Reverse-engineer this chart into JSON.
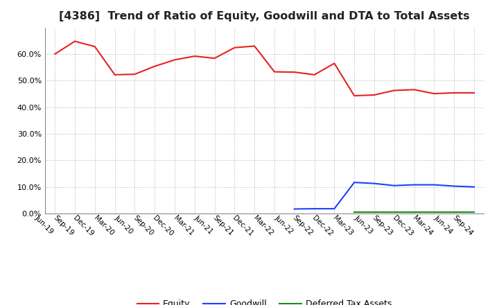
{
  "title": "[4386]  Trend of Ratio of Equity, Goodwill and DTA to Total Assets",
  "x_labels": [
    "Jun-19",
    "Sep-19",
    "Dec-19",
    "Mar-20",
    "Jun-20",
    "Sep-20",
    "Dec-20",
    "Mar-21",
    "Jun-21",
    "Sep-21",
    "Dec-21",
    "Mar-22",
    "Jun-22",
    "Sep-22",
    "Dec-22",
    "Mar-23",
    "Jun-23",
    "Sep-23",
    "Dec-23",
    "Mar-24",
    "Jun-24",
    "Sep-24"
  ],
  "equity": [
    0.6,
    0.648,
    0.628,
    0.522,
    0.524,
    0.554,
    0.578,
    0.592,
    0.584,
    0.624,
    0.63,
    0.533,
    0.532,
    0.522,
    0.565,
    0.443,
    0.446,
    0.463,
    0.466,
    0.451,
    0.454,
    0.454
  ],
  "goodwill": [
    null,
    null,
    null,
    null,
    null,
    null,
    null,
    null,
    null,
    null,
    null,
    null,
    0.017,
    0.018,
    0.018,
    0.117,
    0.113,
    0.105,
    0.108,
    0.108,
    0.103,
    0.1
  ],
  "dta": [
    null,
    null,
    null,
    null,
    null,
    null,
    null,
    null,
    null,
    null,
    null,
    null,
    null,
    null,
    null,
    0.005,
    0.005,
    0.005,
    0.005,
    0.005,
    0.005,
    0.005
  ],
  "equity_color": "#e82020",
  "goodwill_color": "#1e3eff",
  "dta_color": "#1a8a1a",
  "background_color": "#ffffff",
  "grid_color": "#b0b0b0",
  "ylim": [
    0.0,
    0.7
  ],
  "yticks": [
    0.0,
    0.1,
    0.2,
    0.3,
    0.4,
    0.5,
    0.6
  ],
  "title_fontsize": 11.5
}
